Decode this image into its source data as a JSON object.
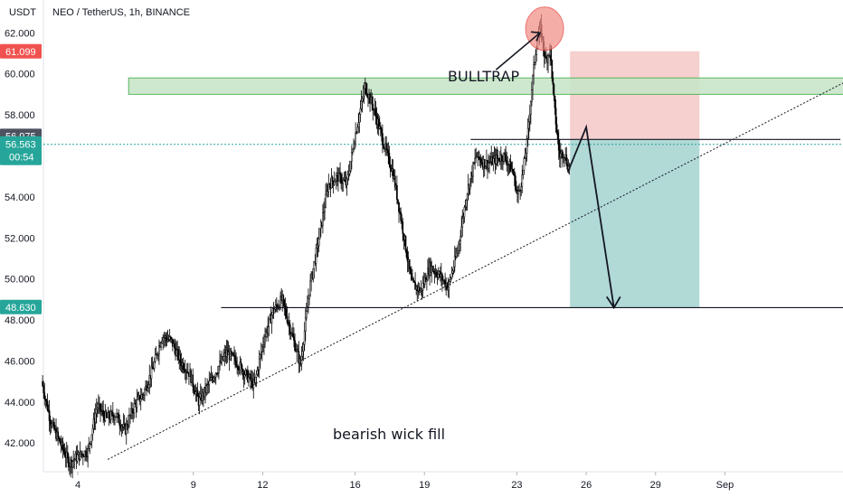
{
  "header": {
    "title": "NEO / TetherUS, 1h, BINANCE",
    "currency": "USDT"
  },
  "chart_data": {
    "type": "candlestick",
    "ylim": [
      40.6,
      63.6
    ],
    "y_ticks": [
      "62.000",
      "60.000",
      "58.000",
      "54.000",
      "52.000",
      "50.000",
      "48.000",
      "46.000",
      "44.000",
      "42.000"
    ],
    "y_tick_values": [
      62,
      60,
      58,
      54,
      52,
      50,
      48,
      46,
      44,
      42
    ],
    "x_ticks": [
      {
        "label": "4",
        "day": 4
      },
      {
        "label": "9",
        "day": 9
      },
      {
        "label": "12",
        "day": 12
      },
      {
        "label": "16",
        "day": 16
      },
      {
        "label": "19",
        "day": 19
      },
      {
        "label": "23",
        "day": 23
      },
      {
        "label": "26",
        "day": 26
      },
      {
        "label": "29",
        "day": 29
      },
      {
        "label": "Sep",
        "day": 32
      }
    ],
    "price_path": [
      [
        2.4,
        45.0
      ],
      [
        2.8,
        43.0
      ],
      [
        3.2,
        42.0
      ],
      [
        3.6,
        41.0
      ],
      [
        4.0,
        41.4
      ],
      [
        4.4,
        41.6
      ],
      [
        4.8,
        43.8
      ],
      [
        5.2,
        43.2
      ],
      [
        5.6,
        43.4
      ],
      [
        6.0,
        42.6
      ],
      [
        6.4,
        43.8
      ],
      [
        6.8,
        44.4
      ],
      [
        7.2,
        45.6
      ],
      [
        7.6,
        47.2
      ],
      [
        8.0,
        47.0
      ],
      [
        8.4,
        46.0
      ],
      [
        8.8,
        45.4
      ],
      [
        9.2,
        44.0
      ],
      [
        9.6,
        44.8
      ],
      [
        10.0,
        45.6
      ],
      [
        10.4,
        46.4
      ],
      [
        10.8,
        46.0
      ],
      [
        11.2,
        45.4
      ],
      [
        11.6,
        44.8
      ],
      [
        12.0,
        47.0
      ],
      [
        12.4,
        48.4
      ],
      [
        12.8,
        49.0
      ],
      [
        13.2,
        47.4
      ],
      [
        13.6,
        45.8
      ],
      [
        14.0,
        49.6
      ],
      [
        14.4,
        52.0
      ],
      [
        14.8,
        54.6
      ],
      [
        15.2,
        55.0
      ],
      [
        15.6,
        54.6
      ],
      [
        16.0,
        57.2
      ],
      [
        16.4,
        59.4
      ],
      [
        16.8,
        58.2
      ],
      [
        17.2,
        56.6
      ],
      [
        17.6,
        55.2
      ],
      [
        18.0,
        52.6
      ],
      [
        18.4,
        49.8
      ],
      [
        18.8,
        49.4
      ],
      [
        19.2,
        50.6
      ],
      [
        19.6,
        50.2
      ],
      [
        20.0,
        49.6
      ],
      [
        20.4,
        51.4
      ],
      [
        20.8,
        54.2
      ],
      [
        21.2,
        56.0
      ],
      [
        21.6,
        55.6
      ],
      [
        22.0,
        55.8
      ],
      [
        22.4,
        56.0
      ],
      [
        22.8,
        55.2
      ],
      [
        23.0,
        54.0
      ],
      [
        23.2,
        55.0
      ],
      [
        23.4,
        56.6
      ],
      [
        23.6,
        59.2
      ],
      [
        23.8,
        61.4
      ],
      [
        24.0,
        62.2
      ],
      [
        24.2,
        60.6
      ],
      [
        24.4,
        61.2
      ],
      [
        24.6,
        58.2
      ],
      [
        24.8,
        56.0
      ],
      [
        25.0,
        56.2
      ],
      [
        25.2,
        55.4
      ]
    ],
    "current_price": {
      "label": "56.563",
      "value": 56.563,
      "countdown": "00:54"
    },
    "markers": [
      {
        "label": "61.099",
        "value": 61.099,
        "color": "#f0524f"
      },
      {
        "label": "56.975",
        "value": 56.975,
        "color": "#4c525e"
      },
      {
        "label": "48.630",
        "value": 48.63,
        "color": "#26a69a"
      }
    ],
    "resistance_zone": {
      "from": 59.0,
      "to": 59.8,
      "day_start": 6.2,
      "day_end": 37.5
    },
    "neckline_level": 56.8,
    "support_level": 48.6,
    "trendline": {
      "start": [
        5.3,
        41.2
      ],
      "end": [
        37.2,
        59.6
      ]
    },
    "short_position": {
      "entry": 56.8,
      "stop": 61.1,
      "target": 48.6,
      "day_start": 25.3,
      "day_end": 30.9
    },
    "projection_path": [
      [
        25.2,
        55.2
      ],
      [
        26.0,
        57.4
      ],
      [
        27.2,
        48.6
      ]
    ],
    "circle_center": [
      24.2,
      62.2
    ],
    "annotations": {
      "bulltrap": "BULLTRAP",
      "note": "bearish wick fill"
    },
    "colors": {
      "up": "#000000",
      "axis_bg": "#ffffff",
      "zone_fill": "#c8e6c9",
      "zone_stroke": "#4caf50",
      "stop_fill": "#f4c7c7",
      "target_fill": "#a8d5d1",
      "circle_fill": "#f28b82",
      "current_price_line": "#26a69a"
    }
  }
}
